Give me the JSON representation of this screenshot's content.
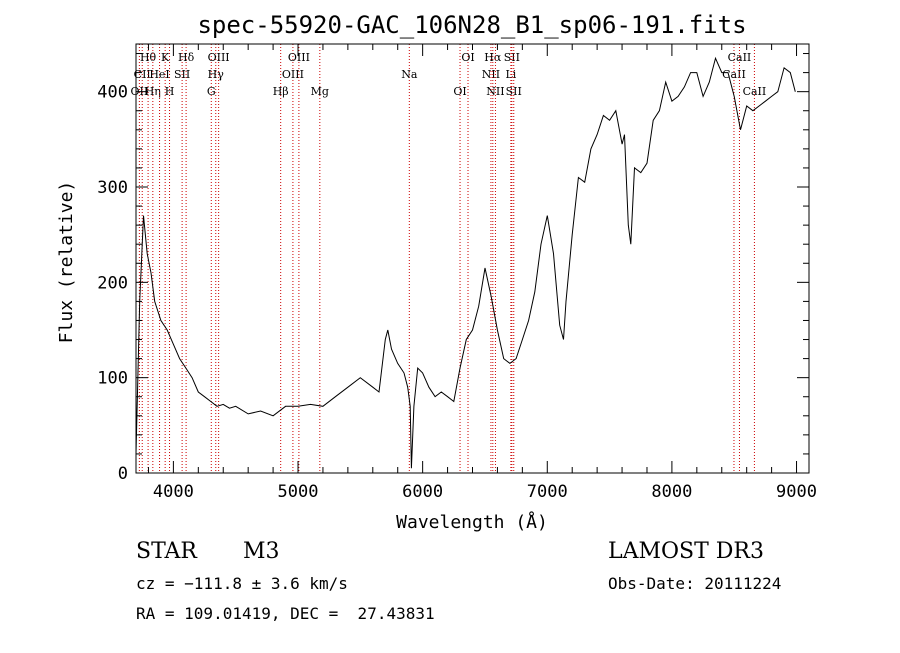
{
  "chart_data": {
    "type": "line",
    "title": "spec-55920-GAC_106N28_B1_sp06-191.fits",
    "xlabel": "Wavelength (Å)",
    "ylabel": "Flux (relative)",
    "xlim": [
      3700,
      9100
    ],
    "ylim": [
      0,
      450
    ],
    "x_ticks": [
      4000,
      5000,
      6000,
      7000,
      8000,
      9000
    ],
    "y_ticks": [
      0,
      100,
      200,
      300,
      400
    ],
    "series": [
      {
        "x": [
          3700,
          3730,
          3760,
          3790,
          3820,
          3850,
          3900,
          3950,
          4000,
          4050,
          4100,
          4150,
          4200,
          4250,
          4300,
          4350,
          4400,
          4450,
          4500,
          4600,
          4700,
          4800,
          4900,
          5000,
          5100,
          5200,
          5300,
          5400,
          5500,
          5600,
          5650,
          5700,
          5720,
          5750,
          5800,
          5850,
          5880,
          5900,
          5910,
          5930,
          5960,
          6000,
          6050,
          6100,
          6150,
          6200,
          6250,
          6300,
          6350,
          6400,
          6450,
          6500,
          6550,
          6600,
          6650,
          6700,
          6750,
          6800,
          6850,
          6900,
          6950,
          7000,
          7050,
          7100,
          7130,
          7150,
          7200,
          7250,
          7300,
          7350,
          7400,
          7450,
          7500,
          7550,
          7600,
          7620,
          7650,
          7670,
          7700,
          7750,
          7800,
          7850,
          7900,
          7950,
          8000,
          8050,
          8100,
          8150,
          8200,
          8250,
          8300,
          8350,
          8400,
          8450,
          8500,
          8550,
          8600,
          8650,
          8700,
          8750,
          8800,
          8850,
          8900,
          8950,
          8990
        ],
        "y": [
          20,
          180,
          270,
          230,
          210,
          180,
          160,
          150,
          135,
          120,
          110,
          100,
          85,
          80,
          75,
          70,
          72,
          68,
          70,
          62,
          65,
          60,
          70,
          70,
          72,
          70,
          80,
          90,
          100,
          90,
          85,
          140,
          150,
          130,
          115,
          105,
          90,
          70,
          5,
          70,
          110,
          105,
          90,
          80,
          85,
          80,
          75,
          110,
          140,
          150,
          175,
          215,
          185,
          150,
          120,
          115,
          120,
          140,
          160,
          190,
          240,
          270,
          230,
          155,
          140,
          180,
          250,
          310,
          305,
          340,
          355,
          375,
          370,
          380,
          345,
          355,
          260,
          240,
          320,
          315,
          325,
          370,
          380,
          410,
          390,
          395,
          405,
          420,
          420,
          395,
          410,
          435,
          420,
          420,
          395,
          360,
          385,
          380,
          385,
          390,
          395,
          400,
          425,
          420,
          400
        ]
      }
    ],
    "line_markers": [
      {
        "wl": 3727,
        "label": "OII",
        "row": 3
      },
      {
        "wl": 3750,
        "label": "CII",
        "row": 2
      },
      {
        "wl": 3797,
        "label": "Hθ",
        "row": 1
      },
      {
        "wl": 3835,
        "label": "Hη",
        "row": 3
      },
      {
        "wl": 3889,
        "label": "HeI",
        "row": 2
      },
      {
        "wl": 3934,
        "label": "K",
        "row": 1
      },
      {
        "wl": 3969,
        "label": "H",
        "row": 3
      },
      {
        "wl": 4070,
        "label": "SII",
        "row": 2
      },
      {
        "wl": 4102,
        "label": "Hδ",
        "row": 1
      },
      {
        "wl": 4304,
        "label": "G",
        "row": 3
      },
      {
        "wl": 4340,
        "label": "Hγ",
        "row": 2
      },
      {
        "wl": 4363,
        "label": "OIII",
        "row": 1
      },
      {
        "wl": 4861,
        "label": "Hβ",
        "row": 3
      },
      {
        "wl": 4959,
        "label": "OIII",
        "row": 2
      },
      {
        "wl": 5007,
        "label": "OIII",
        "row": 1
      },
      {
        "wl": 5175,
        "label": "Mg",
        "row": 3
      },
      {
        "wl": 5893,
        "label": "Na",
        "row": 2
      },
      {
        "wl": 6300,
        "label": "OI",
        "row": 3
      },
      {
        "wl": 6364,
        "label": "OI",
        "row": 1
      },
      {
        "wl": 6548,
        "label": "NII",
        "row": 2
      },
      {
        "wl": 6563,
        "label": "Hα",
        "row": 1
      },
      {
        "wl": 6584,
        "label": "NII",
        "row": 3
      },
      {
        "wl": 6708,
        "label": "Li",
        "row": 2
      },
      {
        "wl": 6716,
        "label": "SII",
        "row": 1
      },
      {
        "wl": 6731,
        "label": "SII",
        "row": 3
      },
      {
        "wl": 8498,
        "label": "CaII",
        "row": 2
      },
      {
        "wl": 8542,
        "label": "CaII",
        "row": 1
      },
      {
        "wl": 8662,
        "label": "CaII",
        "row": 3
      }
    ],
    "line_marker_color": "#cc0000"
  },
  "info": {
    "class": "STAR",
    "subclass": "M3",
    "survey": "LAMOST DR3",
    "cz": "cz = −111.8 ± 3.6 km/s",
    "obs_date": "Obs-Date: 20111224",
    "coords": "RA = 109.01419, DEC =  27.43831"
  }
}
